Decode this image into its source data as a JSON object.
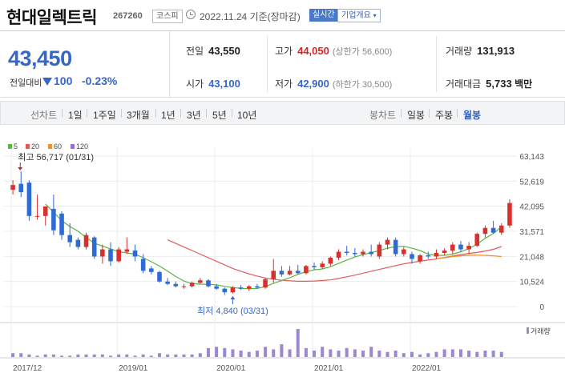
{
  "header": {
    "name": "현대일렉트릭",
    "code": "267260",
    "market": "코스피",
    "date": "2022.11.24 기준(장마감)",
    "realtime": "실시간",
    "company_info": "기업개요"
  },
  "price": {
    "current": "43,450",
    "compare_label": "전일대비",
    "change": "100",
    "change_pct": "-0.23%",
    "prev_label": "전일",
    "prev": "43,550",
    "high_label": "고가",
    "high": "44,050",
    "upper_limit": "(상한가 56,600)",
    "volume_label": "거래량",
    "volume": "131,913",
    "open_label": "시가",
    "open": "43,100",
    "low_label": "저가",
    "low": "42,900",
    "lower_limit": "(하한가 30,500)",
    "amount_label": "거래대금",
    "amount": "5,733",
    "amount_unit": "백만"
  },
  "periods": {
    "line_label": "선차트",
    "line_items": [
      "1일",
      "1주일",
      "3개월",
      "1년",
      "3년",
      "5년",
      "10년"
    ],
    "candle_label": "봉차트",
    "candle_items": [
      "일봉",
      "주봉",
      "월봉"
    ],
    "selected": "월봉"
  },
  "colors": {
    "up": "#d9302e",
    "down": "#2f6bd4",
    "ma5": "#5bb444",
    "ma20": "#e15b5b",
    "ma60": "#f0902a",
    "ma120": "#9b6bd6",
    "volume": "#9b88d0"
  },
  "chart_data": {
    "type": "candlestick",
    "interval": "monthly",
    "legend": [
      {
        "name": "5",
        "color": "#5bb444"
      },
      {
        "name": "20",
        "color": "#e15b5b"
      },
      {
        "name": "60",
        "color": "#f0902a"
      },
      {
        "name": "120",
        "color": "#9b6bd6"
      }
    ],
    "y_ticks": [
      "63,143",
      "52,619",
      "42,095",
      "31,571",
      "21,048",
      "10,524",
      "0"
    ],
    "y_tick_values": [
      63143,
      52619,
      42095,
      31571,
      21048,
      10524,
      0
    ],
    "ylim": [
      0,
      63143
    ],
    "x_ticks": [
      {
        "label": "2017/12",
        "index": 0
      },
      {
        "label": "2019/01",
        "index": 13
      },
      {
        "label": "2020/01",
        "index": 25
      },
      {
        "label": "2021/01",
        "index": 37
      },
      {
        "label": "2022/01",
        "index": 49
      }
    ],
    "high_annotation": {
      "label": "최고 56,717 (01/31)",
      "index": 1,
      "value": 56717
    },
    "low_annotation": {
      "label": "최저 4,840 (03/31)",
      "index": 27,
      "value": 4840
    },
    "volume_label": "거래량",
    "candles": [
      {
        "o": 49000,
        "h": 53000,
        "l": 47000,
        "c": 51000
      },
      {
        "o": 51500,
        "h": 56717,
        "l": 46000,
        "c": 48000
      },
      {
        "o": 52000,
        "h": 53000,
        "l": 36000,
        "c": 38000
      },
      {
        "o": 38000,
        "h": 47000,
        "l": 36500,
        "c": 38000
      },
      {
        "o": 38000,
        "h": 42000,
        "l": 34000,
        "c": 42000
      },
      {
        "o": 41000,
        "h": 47000,
        "l": 30000,
        "c": 32000
      },
      {
        "o": 39000,
        "h": 40000,
        "l": 28000,
        "c": 30000
      },
      {
        "o": 30000,
        "h": 35000,
        "l": 25000,
        "c": 27000
      },
      {
        "o": 28000,
        "h": 29000,
        "l": 24000,
        "c": 25000
      },
      {
        "o": 25000,
        "h": 31000,
        "l": 24000,
        "c": 30000
      },
      {
        "o": 29000,
        "h": 29500,
        "l": 20000,
        "c": 21000
      },
      {
        "o": 21000,
        "h": 26000,
        "l": 18000,
        "c": 24000
      },
      {
        "o": 24000,
        "h": 27000,
        "l": 17000,
        "c": 19000
      },
      {
        "o": 19000,
        "h": 25000,
        "l": 18500,
        "c": 24000
      },
      {
        "o": 23000,
        "h": 29000,
        "l": 22000,
        "c": 24000
      },
      {
        "o": 23500,
        "h": 26000,
        "l": 19000,
        "c": 21000
      },
      {
        "o": 20000,
        "h": 22000,
        "l": 14000,
        "c": 15000
      },
      {
        "o": 16000,
        "h": 17000,
        "l": 13500,
        "c": 14500
      },
      {
        "o": 14500,
        "h": 15000,
        "l": 10000,
        "c": 10500
      },
      {
        "o": 10500,
        "h": 12000,
        "l": 9000,
        "c": 9500
      },
      {
        "o": 9500,
        "h": 10500,
        "l": 8000,
        "c": 8500
      },
      {
        "o": 8500,
        "h": 9500,
        "l": 7500,
        "c": 8500
      },
      {
        "o": 8500,
        "h": 10500,
        "l": 8000,
        "c": 10000
      },
      {
        "o": 10000,
        "h": 12000,
        "l": 9500,
        "c": 11000
      },
      {
        "o": 11000,
        "h": 11500,
        "l": 8000,
        "c": 8500
      },
      {
        "o": 8500,
        "h": 9500,
        "l": 7000,
        "c": 7500
      },
      {
        "o": 7500,
        "h": 8000,
        "l": 4840,
        "c": 6000
      },
      {
        "o": 6000,
        "h": 8500,
        "l": 5500,
        "c": 8000
      },
      {
        "o": 8000,
        "h": 9000,
        "l": 7000,
        "c": 7500
      },
      {
        "o": 7500,
        "h": 9000,
        "l": 6500,
        "c": 8500
      },
      {
        "o": 8500,
        "h": 9500,
        "l": 7500,
        "c": 8000
      },
      {
        "o": 8000,
        "h": 12000,
        "l": 7500,
        "c": 11500
      },
      {
        "o": 11500,
        "h": 20000,
        "l": 10000,
        "c": 15000
      },
      {
        "o": 15000,
        "h": 17000,
        "l": 12500,
        "c": 13500
      },
      {
        "o": 13500,
        "h": 17000,
        "l": 13000,
        "c": 15000
      },
      {
        "o": 15000,
        "h": 17500,
        "l": 13500,
        "c": 14000
      },
      {
        "o": 14000,
        "h": 17500,
        "l": 13500,
        "c": 17000
      },
      {
        "o": 17000,
        "h": 18500,
        "l": 15500,
        "c": 16500
      },
      {
        "o": 16500,
        "h": 19000,
        "l": 16000,
        "c": 18000
      },
      {
        "o": 18000,
        "h": 21000,
        "l": 17000,
        "c": 20500
      },
      {
        "o": 20500,
        "h": 24000,
        "l": 19500,
        "c": 23000
      },
      {
        "o": 23000,
        "h": 25500,
        "l": 21500,
        "c": 22500
      },
      {
        "o": 22500,
        "h": 24500,
        "l": 21000,
        "c": 22000
      },
      {
        "o": 22000,
        "h": 24000,
        "l": 21000,
        "c": 23000
      },
      {
        "o": 23000,
        "h": 26000,
        "l": 21000,
        "c": 22000
      },
      {
        "o": 21000,
        "h": 27000,
        "l": 20000,
        "c": 26000
      },
      {
        "o": 26000,
        "h": 29000,
        "l": 24000,
        "c": 28000
      },
      {
        "o": 28000,
        "h": 29000,
        "l": 21000,
        "c": 22000
      },
      {
        "o": 22000,
        "h": 25000,
        "l": 21000,
        "c": 24000
      },
      {
        "o": 22000,
        "h": 23000,
        "l": 18000,
        "c": 20000
      },
      {
        "o": 19000,
        "h": 22000,
        "l": 18000,
        "c": 21500
      },
      {
        "o": 21500,
        "h": 23000,
        "l": 20000,
        "c": 21000
      },
      {
        "o": 21000,
        "h": 24000,
        "l": 20000,
        "c": 22500
      },
      {
        "o": 22500,
        "h": 24500,
        "l": 21500,
        "c": 23500
      },
      {
        "o": 23500,
        "h": 27000,
        "l": 22000,
        "c": 26000
      },
      {
        "o": 26000,
        "h": 27500,
        "l": 23000,
        "c": 24000
      },
      {
        "o": 24000,
        "h": 27000,
        "l": 22000,
        "c": 25500
      },
      {
        "o": 25500,
        "h": 31000,
        "l": 25000,
        "c": 30500
      },
      {
        "o": 30500,
        "h": 34000,
        "l": 29000,
        "c": 33000
      },
      {
        "o": 33000,
        "h": 36000,
        "l": 30500,
        "c": 31000
      },
      {
        "o": 31000,
        "h": 35000,
        "l": 30000,
        "c": 34000
      },
      {
        "o": 34000,
        "h": 45000,
        "l": 33000,
        "c": 43450
      }
    ],
    "ma5": [
      null,
      null,
      null,
      null,
      43000,
      39600,
      36000,
      33600,
      31600,
      29000,
      26600,
      25400,
      24200,
      23000,
      22500,
      22000,
      20500,
      18800,
      17000,
      14900,
      12600,
      10700,
      9600,
      9400,
      9300,
      9100,
      8500,
      8000,
      7600,
      7500,
      7600,
      8400,
      9700,
      10900,
      12100,
      13500,
      14600,
      15400,
      15800,
      16700,
      18100,
      19500,
      20800,
      21800,
      22600,
      23500,
      24500,
      25200,
      25300,
      24500,
      23500,
      22000,
      21500,
      21500,
      22000,
      23000,
      24300,
      26200,
      28600,
      30700,
      33500
    ],
    "ma20": [
      null,
      null,
      null,
      null,
      null,
      null,
      null,
      null,
      null,
      null,
      null,
      null,
      null,
      null,
      null,
      null,
      null,
      null,
      null,
      28000,
      26500,
      25000,
      23500,
      22000,
      20500,
      19000,
      17500,
      16000,
      14800,
      13700,
      12800,
      12000,
      11500,
      11000,
      10800,
      10600,
      10600,
      10700,
      10900,
      11200,
      11800,
      12500,
      13200,
      14000,
      14800,
      15600,
      16400,
      17200,
      17900,
      18500,
      19000,
      19500,
      20000,
      20600,
      21200,
      21800,
      22300,
      22700,
      23300,
      24000,
      25200
    ],
    "ma60": [
      null,
      null,
      null,
      null,
      null,
      null,
      null,
      null,
      null,
      null,
      null,
      null,
      null,
      null,
      null,
      null,
      null,
      null,
      null,
      null,
      null,
      null,
      null,
      null,
      null,
      null,
      null,
      null,
      null,
      null,
      null,
      null,
      null,
      null,
      null,
      null,
      null,
      null,
      null,
      null,
      null,
      null,
      null,
      null,
      null,
      null,
      null,
      null,
      null,
      null,
      null,
      null,
      20000,
      20500,
      21000,
      21300,
      21500,
      21600,
      21500,
      21300,
      21000
    ],
    "volumes": [
      3,
      3,
      2,
      1,
      2,
      2,
      1,
      1,
      2,
      2,
      2,
      2,
      1,
      2,
      2,
      1,
      2,
      1,
      3,
      2,
      2,
      2,
      2,
      3,
      7,
      8,
      7,
      6,
      5,
      4,
      5,
      8,
      6,
      10,
      6,
      22,
      7,
      5,
      8,
      6,
      5,
      7,
      6,
      5,
      8,
      5,
      4,
      5,
      3,
      4,
      2,
      3,
      4,
      6,
      6,
      6,
      5,
      4,
      5,
      5,
      4
    ]
  }
}
